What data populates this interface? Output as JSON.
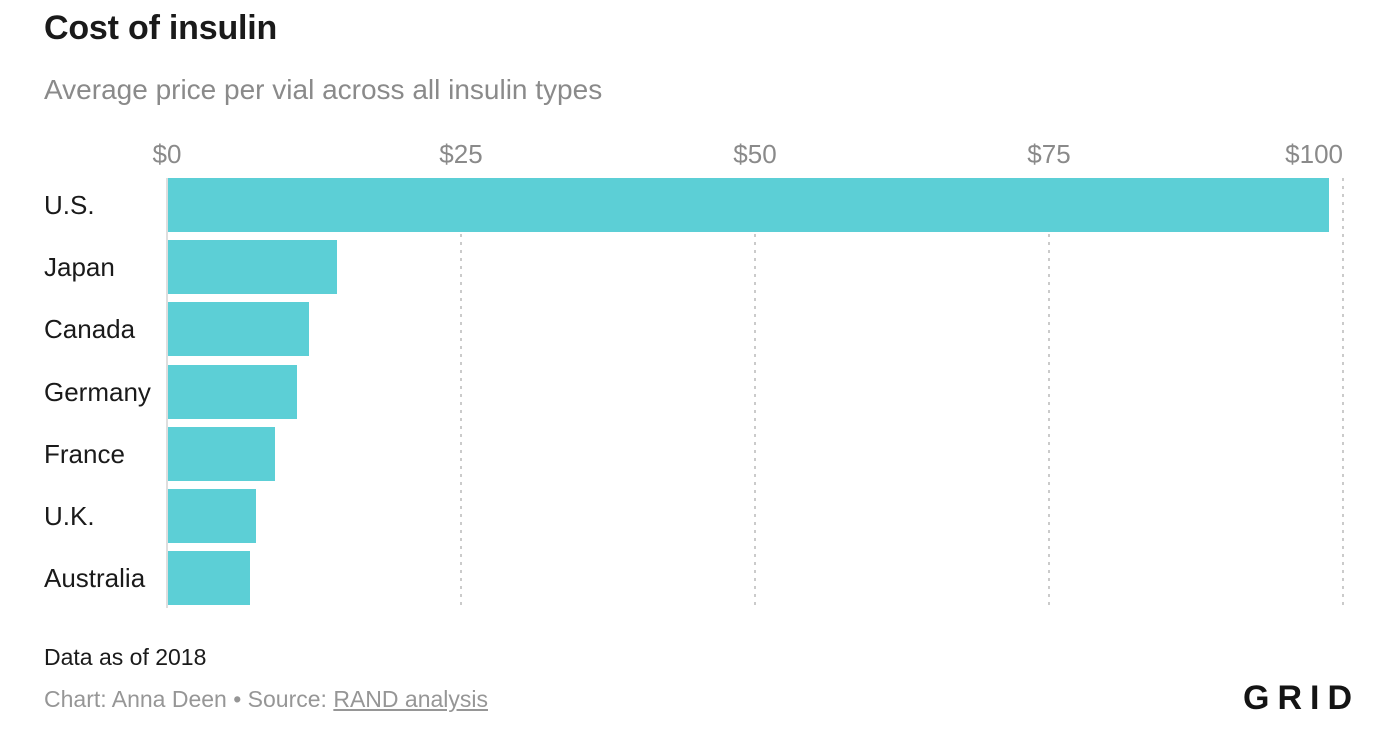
{
  "header": {
    "title": "Cost of insulin",
    "subtitle": "Average price per vial across all insulin types"
  },
  "chart_data": {
    "type": "bar",
    "orientation": "horizontal",
    "title": "Cost of insulin",
    "subtitle": "Average price per vial across all insulin types",
    "categories": [
      "U.S.",
      "Japan",
      "Canada",
      "Germany",
      "France",
      "U.K.",
      "Australia"
    ],
    "values": [
      98.7,
      14.4,
      12.0,
      11.0,
      9.08,
      7.52,
      6.94
    ],
    "xlabel": "",
    "ylabel": "",
    "xlim": [
      0,
      100
    ],
    "x_ticks": [
      {
        "value": 0,
        "label": "$0"
      },
      {
        "value": 25,
        "label": "$25"
      },
      {
        "value": 50,
        "label": "$50"
      },
      {
        "value": 75,
        "label": "$75"
      },
      {
        "value": 100,
        "label": "$100"
      }
    ],
    "grid": "vertical-dotted",
    "legend_position": "none"
  },
  "footer": {
    "note": "Data as of 2018",
    "credit_prefix": "Chart: Anna Deen • Source: ",
    "source_link_label": "RAND analysis",
    "logo_text": "GRID"
  },
  "colors": {
    "bar": "#5ccfd6",
    "title_text": "#1a1a1a",
    "muted_text": "#8a8a8a",
    "credit_text": "#969696",
    "gridline": "#cbcbcb",
    "axis_line": "#dedede",
    "background": "#ffffff"
  }
}
